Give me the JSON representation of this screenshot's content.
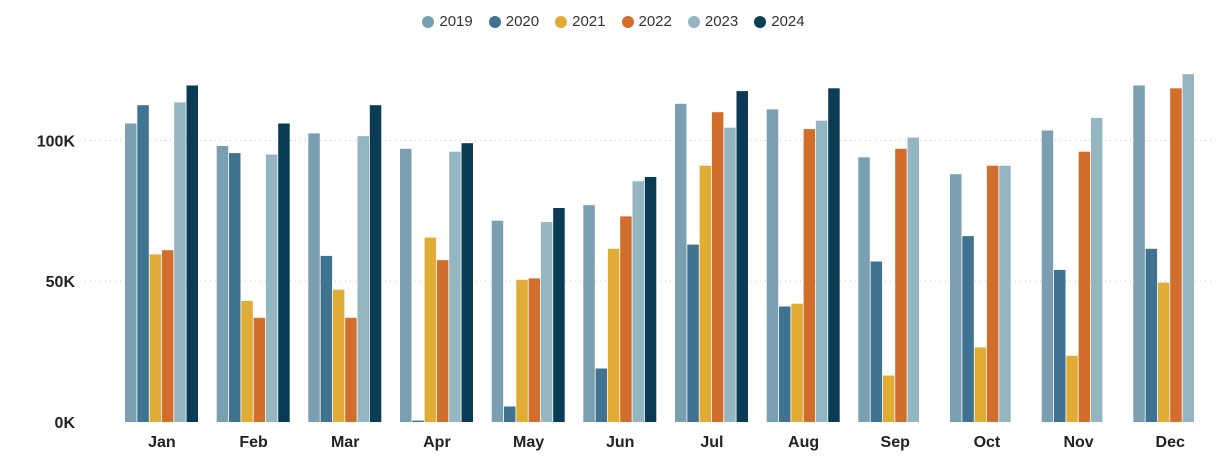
{
  "chart_data": {
    "type": "bar",
    "categories": [
      "Jan",
      "Feb",
      "Mar",
      "Apr",
      "May",
      "Jun",
      "Jul",
      "Aug",
      "Sep",
      "Oct",
      "Nov",
      "Dec"
    ],
    "series": [
      {
        "name": "2019",
        "color": "#7a9fb0",
        "values": [
          106000,
          98000,
          102500,
          97000,
          71500,
          77000,
          113000,
          111000,
          94000,
          88000,
          103500,
          119500
        ]
      },
      {
        "name": "2020",
        "color": "#3f7391",
        "values": [
          112500,
          95500,
          59000,
          500,
          5500,
          19000,
          63000,
          41000,
          57000,
          66000,
          54000,
          61500
        ]
      },
      {
        "name": "2021",
        "color": "#e1ac36",
        "values": [
          59500,
          43000,
          47000,
          65500,
          50500,
          61500,
          91000,
          42000,
          16500,
          26500,
          23500,
          49500
        ]
      },
      {
        "name": "2022",
        "color": "#d26e2c",
        "values": [
          61000,
          37000,
          37000,
          57500,
          51000,
          73000,
          110000,
          104000,
          97000,
          91000,
          96000,
          118500
        ]
      },
      {
        "name": "2023",
        "color": "#94b6c1",
        "values": [
          113500,
          95000,
          101500,
          96000,
          71000,
          85500,
          104500,
          107000,
          101000,
          91000,
          108000,
          123500
        ]
      },
      {
        "name": "2024",
        "color": "#0a3d55",
        "values": [
          119500,
          106000,
          112500,
          99000,
          76000,
          87000,
          117500,
          118500,
          null,
          null,
          null,
          null
        ]
      }
    ],
    "y_ticks": [
      {
        "value": 0,
        "label": "0K"
      },
      {
        "value": 50000,
        "label": "50K"
      },
      {
        "value": 100000,
        "label": "100K"
      }
    ],
    "ylim": [
      0,
      125000
    ],
    "grid": true,
    "legend_position": "top-center",
    "title": "",
    "xlabel": "",
    "ylabel": ""
  }
}
